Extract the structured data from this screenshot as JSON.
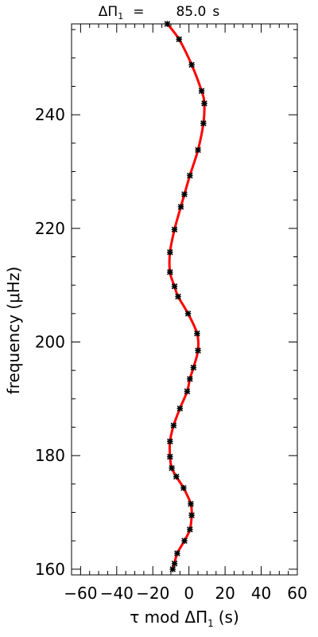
{
  "chart_data": {
    "type": "scatter",
    "title": {
      "symbol": "ΔΠ",
      "subscript": "1",
      "equals": "=",
      "value": "85.0",
      "unit": "s"
    },
    "xlabel": {
      "prefix": "τ mod ΔΠ",
      "subscript": "1",
      "suffix": "(s)"
    },
    "ylabel": {
      "prefix": "frequency (",
      "mu": "μ",
      "suffix": "Hz)"
    },
    "xlim": [
      -65,
      60
    ],
    "ylim": [
      159,
      256
    ],
    "x_ticks": [
      -60,
      -40,
      -20,
      0,
      20,
      40,
      60
    ],
    "x_tick_labels": [
      "−60",
      "−40",
      "−20",
      "0",
      "20",
      "40",
      "60"
    ],
    "x_minor_step": 5,
    "y_ticks": [
      160,
      180,
      200,
      220,
      240
    ],
    "y_tick_labels": [
      "160",
      "180",
      "200",
      "220",
      "240"
    ],
    "y_minor_step": 5,
    "marker_color": "#000000",
    "line_color": "#ff0000",
    "series": [
      {
        "values": [
          {
            "x": -9.0,
            "y": 160.0
          },
          {
            "x": -8.0,
            "y": 161.0
          },
          {
            "x": -6.5,
            "y": 162.8
          },
          {
            "x": -2.5,
            "y": 165.0
          },
          {
            "x": 0.5,
            "y": 167.0
          },
          {
            "x": 1.5,
            "y": 169.5
          },
          {
            "x": 1.0,
            "y": 171.5
          },
          {
            "x": -3.0,
            "y": 174.3
          },
          {
            "x": -7.0,
            "y": 176.3
          },
          {
            "x": -9.5,
            "y": 177.8
          },
          {
            "x": -10.5,
            "y": 179.8
          },
          {
            "x": -10.5,
            "y": 182.5
          },
          {
            "x": -8.5,
            "y": 185.3
          },
          {
            "x": -5.0,
            "y": 188.3
          },
          {
            "x": -1.0,
            "y": 191.3
          },
          {
            "x": 0.5,
            "y": 193.5
          },
          {
            "x": 2.5,
            "y": 195.5
          },
          {
            "x": 5.0,
            "y": 198.5
          },
          {
            "x": 4.5,
            "y": 201.5
          },
          {
            "x": -0.5,
            "y": 205.0
          },
          {
            "x": -6.0,
            "y": 208.0
          },
          {
            "x": -8.0,
            "y": 209.8
          },
          {
            "x": -10.5,
            "y": 212.3
          },
          {
            "x": -10.5,
            "y": 215.8
          },
          {
            "x": -8.0,
            "y": 219.8
          },
          {
            "x": -4.5,
            "y": 223.8
          },
          {
            "x": -2.5,
            "y": 226.0
          },
          {
            "x": 0.5,
            "y": 229.3
          },
          {
            "x": 5.0,
            "y": 233.8
          },
          {
            "x": 8.0,
            "y": 238.5
          },
          {
            "x": 8.5,
            "y": 242.0
          },
          {
            "x": 7.0,
            "y": 244.2
          },
          {
            "x": 1.5,
            "y": 248.8
          },
          {
            "x": -5.5,
            "y": 253.3
          },
          {
            "x": -12.0,
            "y": 256.0
          }
        ]
      }
    ]
  }
}
